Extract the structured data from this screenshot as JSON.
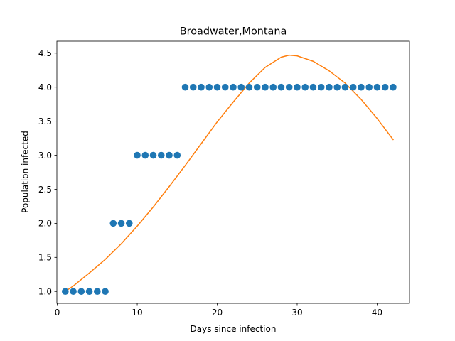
{
  "chart_data": {
    "type": "scatter",
    "title": "Broadwater,Montana",
    "xlabel": "Days since infection",
    "ylabel": "Population infected",
    "xlim": [
      -0.05,
      44.05
    ],
    "ylim": [
      0.825,
      4.675
    ],
    "xticks": [
      0,
      10,
      20,
      30,
      40
    ],
    "xtick_labels": [
      "0",
      "10",
      "20",
      "30",
      "40"
    ],
    "yticks": [
      1.0,
      1.5,
      2.0,
      2.5,
      3.0,
      3.5,
      4.0,
      4.5
    ],
    "ytick_labels": [
      "1.0",
      "1.5",
      "2.0",
      "2.5",
      "3.0",
      "3.5",
      "4.0",
      "4.5"
    ],
    "grid": false,
    "series": [
      {
        "kind": "scatter",
        "color": "#1f77b4",
        "x": [
          1,
          2,
          3,
          4,
          5,
          6,
          7,
          8,
          9,
          10,
          11,
          12,
          13,
          14,
          15,
          16,
          17,
          18,
          19,
          20,
          21,
          22,
          23,
          24,
          25,
          26,
          27,
          28,
          29,
          30,
          31,
          32,
          33,
          34,
          35,
          36,
          37,
          38,
          39,
          40,
          41,
          42
        ],
        "y": [
          1,
          1,
          1,
          1,
          1,
          1,
          2,
          2,
          2,
          3,
          3,
          3,
          3,
          3,
          3,
          4,
          4,
          4,
          4,
          4,
          4,
          4,
          4,
          4,
          4,
          4,
          4,
          4,
          4,
          4,
          4,
          4,
          4,
          4,
          4,
          4,
          4,
          4,
          4,
          4,
          4,
          4
        ]
      },
      {
        "kind": "line",
        "color": "#ff7f0e",
        "x": [
          1,
          2,
          4,
          6,
          8,
          10,
          12,
          14,
          16,
          18,
          20,
          22,
          24,
          26,
          28,
          29,
          30,
          32,
          34,
          36,
          38,
          40,
          42
        ],
        "y": [
          1.0,
          1.08,
          1.27,
          1.47,
          1.7,
          1.96,
          2.24,
          2.54,
          2.85,
          3.17,
          3.49,
          3.78,
          4.06,
          4.29,
          4.44,
          4.47,
          4.46,
          4.38,
          4.24,
          4.06,
          3.82,
          3.54,
          3.23
        ]
      }
    ]
  }
}
